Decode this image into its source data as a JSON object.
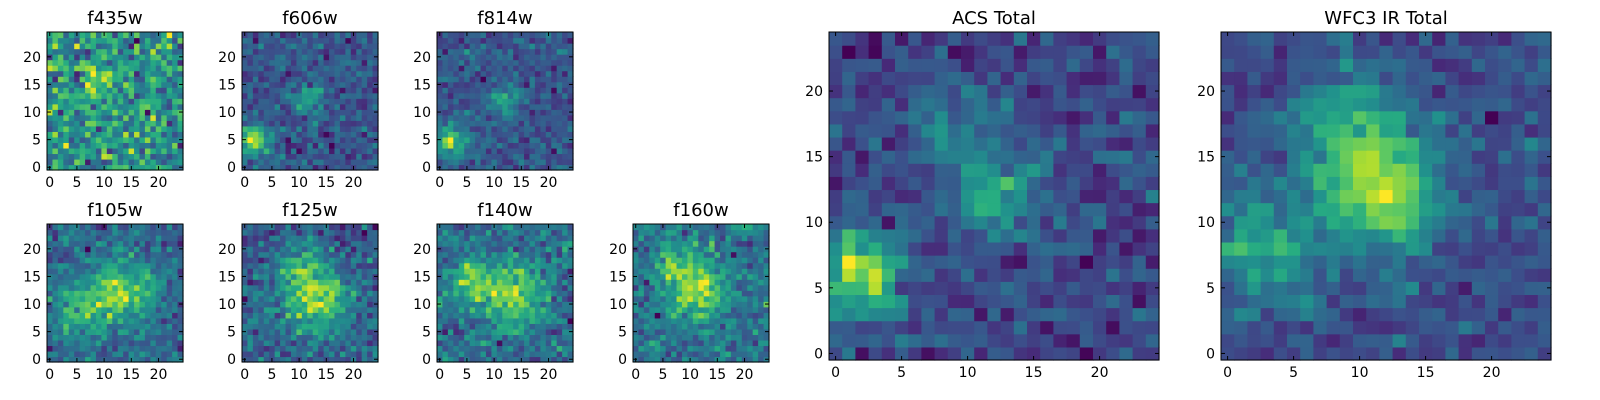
{
  "chart_data": [
    {
      "type": "heatmap",
      "title": "f435w",
      "colormap": "viridis",
      "xlim": [
        0,
        24
      ],
      "ylim": [
        0,
        24
      ],
      "grid": false,
      "xticks": [
        "0",
        "5",
        "10",
        "15",
        "20"
      ],
      "yticks": [
        "0",
        "5",
        "10",
        "15",
        "20"
      ],
      "description_values": "low-amplitude noise field, slight bright clump near (9,15)",
      "seed": 11,
      "blobs": [
        [
          9,
          15,
          2.5,
          0.5
        ]
      ],
      "noise": 1.0,
      "bias": 0.2
    },
    {
      "type": "heatmap",
      "title": "f606w",
      "colormap": "viridis",
      "xlim": [
        0,
        24
      ],
      "ylim": [
        0,
        24
      ],
      "grid": false,
      "xticks": [
        "0",
        "5",
        "10",
        "15",
        "20"
      ],
      "yticks": [
        "0",
        "5",
        "10",
        "15",
        "20"
      ],
      "seed": 22,
      "blobs": [
        [
          2,
          5,
          2.0,
          1.6
        ],
        [
          12,
          12,
          2.2,
          0.8
        ]
      ],
      "noise": 0.7,
      "bias": 0.0
    },
    {
      "type": "heatmap",
      "title": "f814w",
      "colormap": "viridis",
      "xlim": [
        0,
        24
      ],
      "ylim": [
        0,
        24
      ],
      "grid": false,
      "xticks": [
        "0",
        "5",
        "10",
        "15",
        "20"
      ],
      "yticks": [
        "0",
        "5",
        "10",
        "15",
        "20"
      ],
      "seed": 33,
      "blobs": [
        [
          2,
          5,
          2.0,
          1.6
        ],
        [
          12,
          12,
          2.2,
          0.9
        ]
      ],
      "noise": 0.7,
      "bias": 0.0
    },
    {
      "type": "heatmap",
      "title": "f105w",
      "colormap": "viridis",
      "xlim": [
        0,
        24
      ],
      "ylim": [
        0,
        24
      ],
      "grid": false,
      "xticks": [
        "0",
        "5",
        "10",
        "15",
        "20"
      ],
      "yticks": [
        "0",
        "5",
        "10",
        "15",
        "20"
      ],
      "seed": 44,
      "blobs": [
        [
          13,
          12,
          4.0,
          0.8
        ],
        [
          5,
          9,
          3.0,
          0.5
        ]
      ],
      "noise": 0.5,
      "bias": 0.3
    },
    {
      "type": "heatmap",
      "title": "f125w",
      "colormap": "viridis",
      "xlim": [
        0,
        24
      ],
      "ylim": [
        0,
        24
      ],
      "grid": false,
      "xticks": [
        "0",
        "5",
        "10",
        "15",
        "20"
      ],
      "yticks": [
        "0",
        "5",
        "10",
        "15",
        "20"
      ],
      "seed": 55,
      "blobs": [
        [
          13,
          11,
          4.0,
          0.9
        ],
        [
          10,
          17,
          2.5,
          0.5
        ]
      ],
      "noise": 0.5,
      "bias": 0.3
    },
    {
      "type": "heatmap",
      "title": "f140w",
      "colormap": "viridis",
      "xlim": [
        0,
        24
      ],
      "ylim": [
        0,
        24
      ],
      "grid": false,
      "xticks": [
        "0",
        "5",
        "10",
        "15",
        "20"
      ],
      "yticks": [
        "0",
        "5",
        "10",
        "15",
        "20"
      ],
      "seed": 66,
      "blobs": [
        [
          13,
          12,
          4.0,
          0.8
        ],
        [
          5,
          14,
          3.0,
          0.5
        ]
      ],
      "noise": 0.5,
      "bias": 0.35
    },
    {
      "type": "heatmap",
      "title": "f160w",
      "colormap": "viridis",
      "xlim": [
        0,
        24
      ],
      "ylim": [
        0,
        24
      ],
      "grid": false,
      "xticks": [
        "0",
        "5",
        "10",
        "15",
        "20"
      ],
      "yticks": [
        "0",
        "5",
        "10",
        "15",
        "20"
      ],
      "seed": 77,
      "blobs": [
        [
          12,
          13,
          3.5,
          0.8
        ],
        [
          7,
          17,
          2.5,
          0.5
        ]
      ],
      "noise": 0.55,
      "bias": 0.25
    },
    {
      "type": "heatmap",
      "title": "ACS Total",
      "colormap": "viridis",
      "xlim": [
        0,
        24
      ],
      "ylim": [
        0,
        24
      ],
      "grid": false,
      "xticks": [
        "0",
        "5",
        "10",
        "15",
        "20"
      ],
      "yticks": [
        "0",
        "5",
        "10",
        "15",
        "20"
      ],
      "seed": 88,
      "blobs": [
        [
          2,
          6,
          2.2,
          1.6
        ],
        [
          12,
          12,
          2.0,
          1.0
        ],
        [
          9,
          17,
          2.5,
          0.5
        ]
      ],
      "noise": 0.6,
      "bias": 0.0
    },
    {
      "type": "heatmap",
      "title": "WFC3 IR Total",
      "colormap": "viridis",
      "xlim": [
        0,
        24
      ],
      "ylim": [
        0,
        24
      ],
      "grid": false,
      "xticks": [
        "0",
        "5",
        "10",
        "15",
        "20"
      ],
      "yticks": [
        "0",
        "5",
        "10",
        "15",
        "20"
      ],
      "seed": 99,
      "blobs": [
        [
          12,
          12,
          3.0,
          1.0
        ],
        [
          9,
          17,
          3.0,
          0.7
        ],
        [
          3,
          8,
          3.0,
          0.6
        ]
      ],
      "noise": 0.35,
      "bias": 0.3
    }
  ]
}
